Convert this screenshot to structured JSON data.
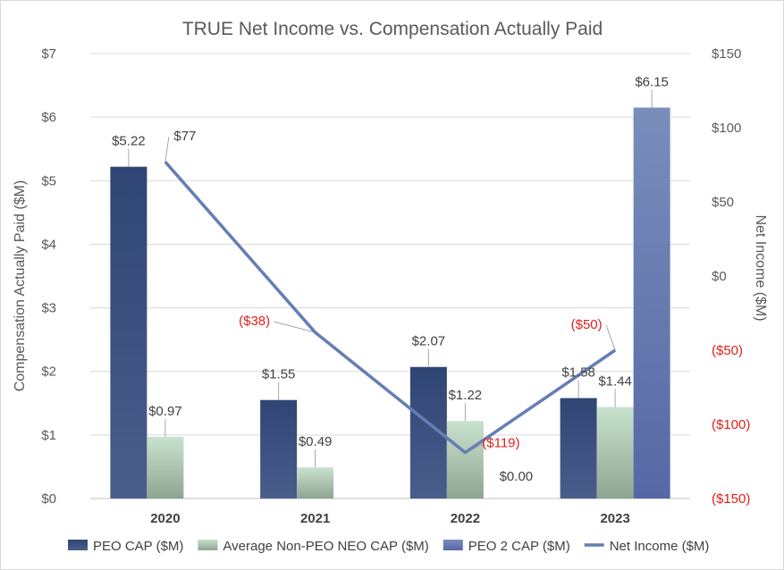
{
  "chart_data": {
    "type": "bar",
    "title": "TRUE Net Income vs. Compensation Actually Paid",
    "categories": [
      "2020",
      "2021",
      "2022",
      "2023"
    ],
    "ylabel": "Compensation Actually Paid ($M)",
    "y2label": "Net Income ($M)",
    "ylim": [
      0,
      7
    ],
    "y2lim": [
      -150,
      150
    ],
    "grid": true,
    "legend_position": "bottom",
    "y_ticks": [
      "$0",
      "$1",
      "$2",
      "$3",
      "$4",
      "$5",
      "$6",
      "$7"
    ],
    "y2_ticks": [
      "($150)",
      "($100)",
      "($50)",
      "$0",
      "$50",
      "$100",
      "$150"
    ],
    "series": [
      {
        "name": "PEO CAP ($M)",
        "kind": "bar",
        "color": "#344a7a",
        "values": [
          5.22,
          1.55,
          2.07,
          1.58
        ],
        "labels": [
          "$5.22",
          "$1.55",
          "$2.07",
          "$1.58"
        ]
      },
      {
        "name": "Average Non-PEO NEO CAP ($M)",
        "kind": "bar",
        "color": "#a9c4ad",
        "values": [
          0.97,
          0.49,
          1.22,
          1.44
        ],
        "labels": [
          "$0.97",
          "$0.49",
          "$1.22",
          "$1.44"
        ]
      },
      {
        "name": "PEO 2 CAP ($M)",
        "kind": "bar",
        "color": "#6278ae",
        "values": [
          null,
          null,
          0.0,
          6.15
        ],
        "labels": [
          "",
          "",
          "$0.00",
          "$6.15"
        ]
      },
      {
        "name": "Net Income ($M)",
        "kind": "line",
        "axis": "right",
        "color": "#667db5",
        "values": [
          77,
          -38,
          -119,
          -50
        ],
        "labels": [
          "$77",
          "($38)",
          "($119)",
          "($50)"
        ]
      }
    ]
  }
}
